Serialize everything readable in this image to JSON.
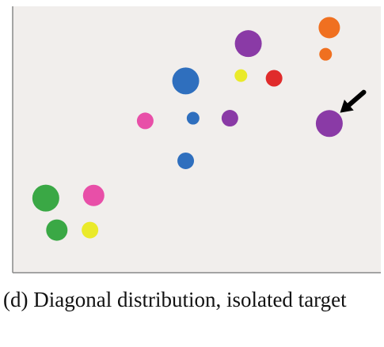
{
  "chart_data": {
    "type": "scatter",
    "title": "",
    "xlabel": "",
    "ylabel": "",
    "xlim": [
      0,
      100
    ],
    "ylim": [
      0,
      100
    ],
    "grid": false,
    "plot_background": "#f1eeec",
    "axis_color": "#888888",
    "points": [
      {
        "x": 9,
        "y": 28,
        "size": "large",
        "color": "#3aa845"
      },
      {
        "x": 12,
        "y": 16,
        "size": "medium",
        "color": "#3aa845"
      },
      {
        "x": 22,
        "y": 29,
        "size": "medium",
        "color": "#e84fa8"
      },
      {
        "x": 21,
        "y": 16,
        "size": "small",
        "color": "#eaea2a"
      },
      {
        "x": 36,
        "y": 57,
        "size": "small",
        "color": "#e84fa8"
      },
      {
        "x": 47,
        "y": 42,
        "size": "small",
        "color": "#2f6fbe"
      },
      {
        "x": 47,
        "y": 72,
        "size": "large",
        "color": "#2f6fbe"
      },
      {
        "x": 49,
        "y": 58,
        "size": "tiny",
        "color": "#2f6fbe"
      },
      {
        "x": 59,
        "y": 58,
        "size": "small",
        "color": "#8a3aa6"
      },
      {
        "x": 62,
        "y": 74,
        "size": "tiny",
        "color": "#eaea2a"
      },
      {
        "x": 64,
        "y": 86,
        "size": "large",
        "color": "#8a3aa6"
      },
      {
        "x": 71,
        "y": 73,
        "size": "small",
        "color": "#e02b2b"
      },
      {
        "x": 86,
        "y": 92,
        "size": "medium",
        "color": "#f07020"
      },
      {
        "x": 85,
        "y": 82,
        "size": "tiny",
        "color": "#f07020"
      },
      {
        "x": 86,
        "y": 56,
        "size": "large",
        "color": "#8a3aa6",
        "target": true
      }
    ],
    "annotations": [
      {
        "type": "arrow",
        "points_to": "target",
        "color": "#000000"
      }
    ]
  },
  "caption": "(d) Diagonal distribution, isolated target"
}
